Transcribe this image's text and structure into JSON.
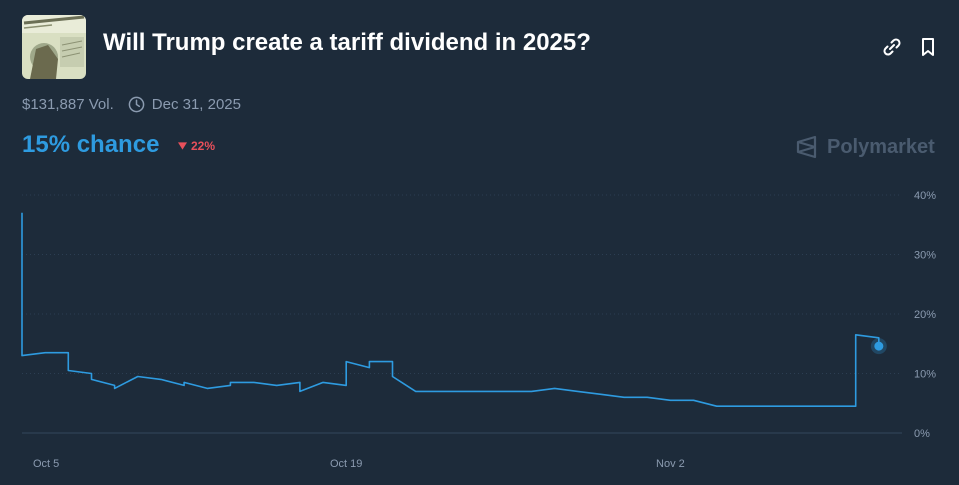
{
  "header": {
    "title": "Will Trump create a tariff dividend in 2025?",
    "volume": "$131,887 Vol.",
    "end_date": "Dec 31, 2025"
  },
  "summary": {
    "chance": "15% chance",
    "change": "22%",
    "change_direction": "down"
  },
  "brand": {
    "name": "Polymarket"
  },
  "icons": {
    "link": "link-icon",
    "bookmark": "bookmark-icon",
    "clock": "clock-icon"
  },
  "colors": {
    "background": "#1d2b3a",
    "line": "#2e9be0",
    "change_down": "#e8505b",
    "muted": "#8b9bb0"
  },
  "chart_data": {
    "type": "line",
    "title": "",
    "xlabel": "",
    "ylabel": "",
    "x_ticks": [
      "Oct 5",
      "Oct 19",
      "Nov 2"
    ],
    "y_ticks": [
      "0%",
      "10%",
      "20%",
      "30%",
      "40%"
    ],
    "ylim": [
      0,
      40
    ],
    "xlim": [
      "2025-10-05",
      "2025-11-12"
    ],
    "grid": true,
    "series": [
      {
        "name": "",
        "x": [
          "2025-10-05",
          "2025-10-05",
          "2025-10-06",
          "2025-10-07",
          "2025-10-07",
          "2025-10-08",
          "2025-10-08",
          "2025-10-09",
          "2025-10-09",
          "2025-10-10",
          "2025-10-11",
          "2025-10-11",
          "2025-10-12",
          "2025-10-12",
          "2025-10-13",
          "2025-10-14",
          "2025-10-14",
          "2025-10-15",
          "2025-10-16",
          "2025-10-17",
          "2025-10-17",
          "2025-10-18",
          "2025-10-18",
          "2025-10-19",
          "2025-10-19",
          "2025-10-20",
          "2025-10-20",
          "2025-10-21",
          "2025-10-21",
          "2025-10-22",
          "2025-10-23",
          "2025-10-24",
          "2025-10-25",
          "2025-10-26",
          "2025-10-27",
          "2025-10-28",
          "2025-10-29",
          "2025-10-30",
          "2025-10-31",
          "2025-11-01",
          "2025-11-02",
          "2025-11-03",
          "2025-11-04",
          "2025-11-05",
          "2025-11-06",
          "2025-11-07",
          "2025-11-08",
          "2025-11-09",
          "2025-11-10",
          "2025-11-10",
          "2025-11-11",
          "2025-11-11"
        ],
        "y": [
          37,
          13,
          13.5,
          13.5,
          10.5,
          10,
          9,
          8,
          7.5,
          9.5,
          9,
          9,
          8,
          8.5,
          7.5,
          8,
          8.5,
          8.5,
          8,
          8.5,
          7,
          8.5,
          8.5,
          8,
          12,
          11,
          12,
          12,
          9.5,
          7,
          7,
          7,
          7,
          7,
          7,
          7.5,
          7,
          6.5,
          6,
          6,
          5.5,
          5.5,
          4.5,
          4.5,
          4.5,
          4.5,
          4.5,
          4.5,
          4.5,
          16.5,
          16,
          14.6
        ]
      }
    ]
  }
}
